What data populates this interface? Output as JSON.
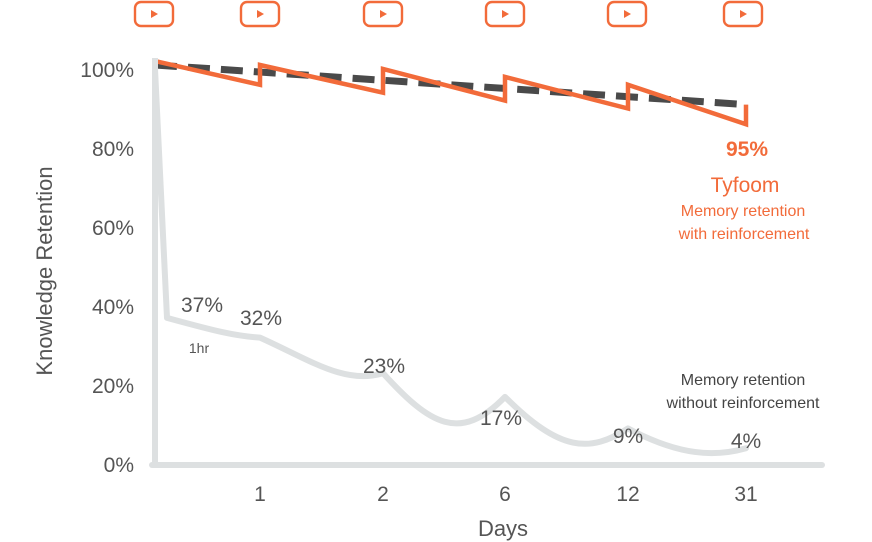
{
  "chart_data": {
    "type": "line",
    "xlabel": "Days",
    "ylabel": "Knowledge Retention",
    "ylim": [
      0,
      100
    ],
    "yticks": [
      {
        "value": 0,
        "label": "0%"
      },
      {
        "value": 20,
        "label": "20%"
      },
      {
        "value": 40,
        "label": "40%"
      },
      {
        "value": 60,
        "label": "60%"
      },
      {
        "value": 80,
        "label": "80%"
      },
      {
        "value": 100,
        "label": "100%"
      }
    ],
    "categories": [
      "1",
      "2",
      "6",
      "12",
      "31"
    ],
    "series": [
      {
        "name": "Memory retention without reinforcement",
        "color": "#dde0e1",
        "points": [
          {
            "x": "start",
            "y": 100
          },
          {
            "x": "1hr",
            "y": 37,
            "label": "37%",
            "sublabel": "1hr"
          },
          {
            "x": "1",
            "y": 32,
            "label": "32%"
          },
          {
            "x": "2",
            "y": 23,
            "label": "23%"
          },
          {
            "x": "6",
            "y": 17,
            "label": "17%"
          },
          {
            "x": "12",
            "y": 9,
            "label": "9%"
          },
          {
            "x": "31",
            "y": 4,
            "label": "4%"
          }
        ]
      },
      {
        "name": "Memory retention with reinforcement",
        "title": "Tyfoom",
        "color": "#f26b3a",
        "end_label": "95%",
        "points": [
          {
            "x": "start",
            "y": 102
          },
          {
            "x": "1",
            "y": 96
          },
          {
            "x": "1",
            "y": 101
          },
          {
            "x": "2",
            "y": 94
          },
          {
            "x": "2",
            "y": 100
          },
          {
            "x": "6",
            "y": 92
          },
          {
            "x": "6",
            "y": 98
          },
          {
            "x": "12",
            "y": 90
          },
          {
            "x": "12",
            "y": 96
          },
          {
            "x": "31",
            "y": 86
          },
          {
            "x": "31",
            "y": 91
          }
        ]
      },
      {
        "name": "trend",
        "color": "#4a4a4a",
        "style": "dashed",
        "points": [
          {
            "x": "start",
            "y": 101
          },
          {
            "x": "31",
            "y": 91
          }
        ]
      }
    ],
    "reinforcement_icons": [
      "play-icon",
      "play-icon",
      "play-icon",
      "play-icon",
      "play-icon",
      "play-icon"
    ],
    "annotations": {
      "reinforced_percent": "95%",
      "reinforced_title": "Tyfoom",
      "reinforced_desc_line1": "Memory retention",
      "reinforced_desc_line2": "with reinforcement",
      "unreinforced_desc_line1": "Memory retention",
      "unreinforced_desc_line2": "without reinforcement"
    },
    "grid": false,
    "legend": "none"
  }
}
